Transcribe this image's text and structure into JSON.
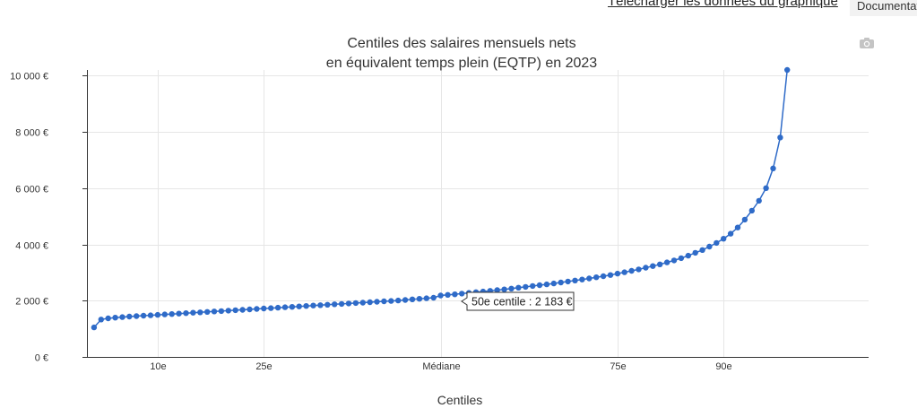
{
  "header": {
    "download_link": "Télécharger les données du graphique",
    "doc_tab": "Documentation"
  },
  "toolbar": {
    "snapshot_icon": "camera-icon"
  },
  "tooltip": {
    "text": "50e centile : 2 183 €"
  },
  "chart_data": {
    "type": "line",
    "title": "Centiles des salaires mensuels nets\nen équivalent temps plein (EQTP) en 2023",
    "title_lines": [
      "Centiles des salaires mensuels nets",
      "en équivalent temps plein (EQTP) en 2023"
    ],
    "xlabel": "Centiles",
    "ylabel": "",
    "x": [
      1,
      2,
      3,
      4,
      5,
      6,
      7,
      8,
      9,
      10,
      11,
      12,
      13,
      14,
      15,
      16,
      17,
      18,
      19,
      20,
      21,
      22,
      23,
      24,
      25,
      26,
      27,
      28,
      29,
      30,
      31,
      32,
      33,
      34,
      35,
      36,
      37,
      38,
      39,
      40,
      41,
      42,
      43,
      44,
      45,
      46,
      47,
      48,
      49,
      50,
      51,
      52,
      53,
      54,
      55,
      56,
      57,
      58,
      59,
      60,
      61,
      62,
      63,
      64,
      65,
      66,
      67,
      68,
      69,
      70,
      71,
      72,
      73,
      74,
      75,
      76,
      77,
      78,
      79,
      80,
      81,
      82,
      83,
      84,
      85,
      86,
      87,
      88,
      89,
      90,
      91,
      92,
      93,
      94,
      95,
      96,
      97,
      98,
      99
    ],
    "values": [
      1050,
      1330,
      1370,
      1395,
      1415,
      1435,
      1450,
      1465,
      1480,
      1495,
      1510,
      1525,
      1540,
      1555,
      1570,
      1585,
      1600,
      1615,
      1630,
      1645,
      1660,
      1675,
      1690,
      1705,
      1720,
      1735,
      1750,
      1765,
      1780,
      1795,
      1810,
      1825,
      1840,
      1855,
      1870,
      1885,
      1900,
      1915,
      1930,
      1945,
      1960,
      1975,
      1990,
      2005,
      2025,
      2045,
      2065,
      2085,
      2105,
      2183,
      2205,
      2225,
      2250,
      2275,
      2300,
      2325,
      2350,
      2375,
      2400,
      2430,
      2460,
      2490,
      2520,
      2550,
      2580,
      2610,
      2645,
      2680,
      2715,
      2750,
      2790,
      2830,
      2870,
      2910,
      2960,
      3010,
      3060,
      3110,
      3170,
      3230,
      3290,
      3360,
      3430,
      3510,
      3600,
      3700,
      3800,
      3920,
      4050,
      4200,
      4380,
      4600,
      4880,
      5200,
      5550,
      6000,
      6700,
      7800,
      10200
    ],
    "xticks": [
      {
        "x": 10,
        "label": "10e"
      },
      {
        "x": 25,
        "label": "25e"
      },
      {
        "x": 50,
        "label": "Médiane"
      },
      {
        "x": 75,
        "label": "75e"
      },
      {
        "x": 90,
        "label": "90e"
      }
    ],
    "yticks": [
      {
        "y": 0,
        "label": "0 €"
      },
      {
        "y": 2000,
        "label": "2 000 €"
      },
      {
        "y": 4000,
        "label": "4 000 €"
      },
      {
        "y": 6000,
        "label": "6 000 €"
      },
      {
        "y": 8000,
        "label": "8 000 €"
      },
      {
        "y": 10000,
        "label": "10 000 €"
      }
    ],
    "xlim": [
      0,
      110.5
    ],
    "ylim": [
      0,
      10200
    ],
    "grid": true,
    "colors": {
      "series": "#2f6bc8",
      "grid": "#e6e6e6",
      "axis": "#333333"
    },
    "highlight_index": 49
  }
}
